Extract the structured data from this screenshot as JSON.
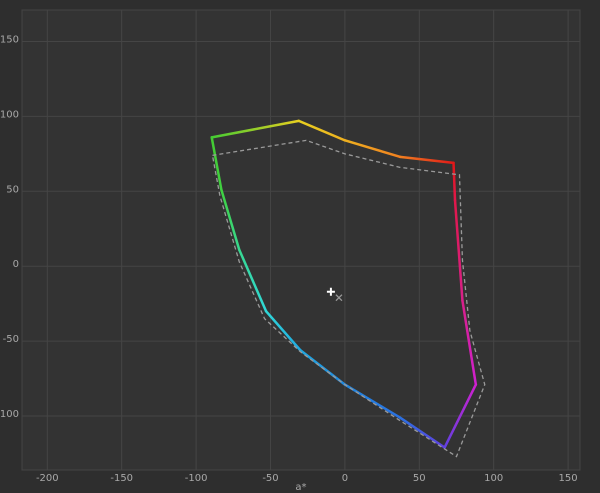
{
  "chart_data": {
    "type": "line",
    "xlabel": "a*",
    "xlim": [
      -217,
      158
    ],
    "ylim": [
      -136,
      171
    ],
    "xticks": [
      -200,
      -150,
      -100,
      -50,
      0,
      50,
      100,
      150
    ],
    "yticks": [
      -100,
      -50,
      0,
      50,
      100,
      150
    ],
    "grid": true,
    "series": [
      {
        "style": "solid",
        "x": [
          -89.5,
          -31,
          0,
          37,
          73,
          74,
          79,
          88,
          67,
          37,
          0,
          -30,
          -53,
          -71,
          -83,
          -89.5
        ],
        "values": [
          86,
          97,
          84,
          73,
          69,
          44,
          -23,
          -79,
          -121,
          -101,
          -79,
          -56,
          -30,
          11,
          51,
          86
        ],
        "colors": [
          "#44cc33",
          "#e8d020",
          "#eeb020",
          "#f08020",
          "#e01818",
          "#e0184a",
          "#d8208a",
          "#d020d0",
          "#6040e0",
          "#2a70e0",
          "#2088e0",
          "#20a8e0",
          "#30d8d8",
          "#38d890",
          "#40d040",
          "#44cc33"
        ]
      },
      {
        "style": "dashed",
        "color": "#9a9a9a",
        "x": [
          -89,
          -26,
          0,
          37,
          77,
          79,
          84,
          94,
          75,
          37,
          0,
          -30,
          -54,
          -71,
          -84,
          -89
        ],
        "values": [
          74,
          84,
          75,
          66,
          61,
          4,
          -43,
          -79,
          -127,
          -103,
          -79,
          -57,
          -35,
          3,
          47,
          74
        ]
      },
      {
        "style": "plus",
        "color": "#ffffff",
        "x": [
          -9.4
        ],
        "values": [
          -17
        ]
      },
      {
        "style": "cross",
        "color": "#9a9a9a",
        "x": [
          -4
        ],
        "values": [
          -21
        ]
      }
    ]
  }
}
